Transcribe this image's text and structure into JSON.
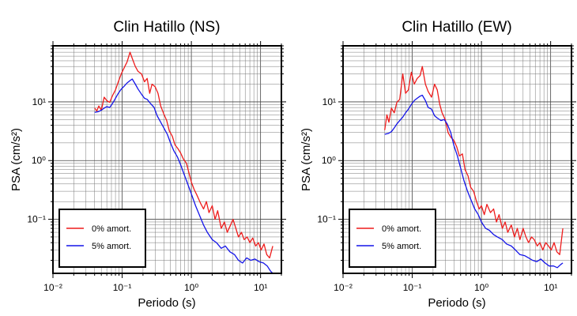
{
  "chart_data": [
    {
      "type": "line",
      "title": "Clin Hatillo (NS)",
      "xlabel": "Periodo (s)",
      "ylabel": "PSA (cm/s²)",
      "xscale": "log",
      "yscale": "log",
      "xlim": [
        0.01,
        20
      ],
      "ylim": [
        0.012,
        90
      ],
      "xticks": [
        0.01,
        0.1,
        1,
        10
      ],
      "xtick_labels": [
        "10⁻²",
        "10⁻¹",
        "10⁰",
        "10¹"
      ],
      "yticks": [
        0.1,
        1,
        10
      ],
      "ytick_labels": [
        "10⁻¹",
        "10⁰",
        "10¹"
      ],
      "grid": true,
      "legend_position": "bottom-left",
      "series": [
        {
          "name": "0% amort.",
          "color": "#ee1c1c",
          "x": [
            0.04,
            0.043,
            0.046,
            0.05,
            0.055,
            0.06,
            0.066,
            0.073,
            0.08,
            0.088,
            0.097,
            0.107,
            0.118,
            0.13,
            0.14,
            0.155,
            0.17,
            0.19,
            0.21,
            0.23,
            0.25,
            0.27,
            0.3,
            0.33,
            0.36,
            0.4,
            0.44,
            0.48,
            0.53,
            0.58,
            0.64,
            0.7,
            0.77,
            0.85,
            0.93,
            1.0,
            1.1,
            1.2,
            1.35,
            1.5,
            1.65,
            1.8,
            2.0,
            2.2,
            2.4,
            2.7,
            3.0,
            3.3,
            3.6,
            4.0,
            4.4,
            4.8,
            5.3,
            5.8,
            6.4,
            7.0,
            7.7,
            8.5,
            9.3,
            10.2,
            11.2,
            12.3,
            13.5,
            15.0
          ],
          "y": [
            7.8,
            7.0,
            8.5,
            7.2,
            12.0,
            10.5,
            9.8,
            13.0,
            16.0,
            22.0,
            30.0,
            38.0,
            48.0,
            70.0,
            55.0,
            40.0,
            33.0,
            30.0,
            22.0,
            25.0,
            14.0,
            20.0,
            18.0,
            14.0,
            8.5,
            6.2,
            4.8,
            3.2,
            2.6,
            1.85,
            1.6,
            1.35,
            1.05,
            0.9,
            0.6,
            0.43,
            0.32,
            0.26,
            0.19,
            0.15,
            0.2,
            0.13,
            0.17,
            0.1,
            0.14,
            0.07,
            0.09,
            0.06,
            0.075,
            0.1,
            0.07,
            0.05,
            0.06,
            0.045,
            0.05,
            0.04,
            0.048,
            0.035,
            0.04,
            0.03,
            0.038,
            0.025,
            0.022,
            0.035
          ]
        },
        {
          "name": "5% amort.",
          "color": "#1414e8",
          "x": [
            0.04,
            0.045,
            0.05,
            0.055,
            0.06,
            0.066,
            0.073,
            0.08,
            0.088,
            0.097,
            0.107,
            0.118,
            0.13,
            0.14,
            0.155,
            0.17,
            0.19,
            0.21,
            0.23,
            0.26,
            0.29,
            0.32,
            0.36,
            0.4,
            0.45,
            0.5,
            0.56,
            0.63,
            0.7,
            0.8,
            0.9,
            1.0,
            1.15,
            1.3,
            1.5,
            1.7,
            2.0,
            2.3,
            2.7,
            3.1,
            3.6,
            4.2,
            4.8,
            5.5,
            6.3,
            7.2,
            8.3,
            9.5,
            11.0,
            12.5,
            14.0,
            15.0
          ],
          "y": [
            6.6,
            6.8,
            7.2,
            7.8,
            8.3,
            8.0,
            9.5,
            11.5,
            14.0,
            16.5,
            18.5,
            21.0,
            23.0,
            24.5,
            20.0,
            16.5,
            13.5,
            11.5,
            11.0,
            9.2,
            8.0,
            5.8,
            4.5,
            3.6,
            2.8,
            2.0,
            1.45,
            1.15,
            0.85,
            0.55,
            0.38,
            0.27,
            0.17,
            0.12,
            0.08,
            0.06,
            0.045,
            0.04,
            0.032,
            0.035,
            0.028,
            0.025,
            0.02,
            0.018,
            0.022,
            0.02,
            0.021,
            0.019,
            0.018,
            0.016,
            0.013,
            0.012
          ]
        }
      ]
    },
    {
      "type": "line",
      "title": "Clin Hatillo (EW)",
      "xlabel": "Periodo (s)",
      "ylabel": "PSA (cm/s²)",
      "xscale": "log",
      "yscale": "log",
      "xlim": [
        0.01,
        20
      ],
      "ylim": [
        0.012,
        90
      ],
      "xticks": [
        0.01,
        0.1,
        1,
        10
      ],
      "xtick_labels": [
        "10⁻²",
        "10⁻¹",
        "10⁰",
        "10¹"
      ],
      "yticks": [
        0.1,
        1,
        10
      ],
      "ytick_labels": [
        "10⁻¹",
        "10⁰",
        "10¹"
      ],
      "grid": true,
      "legend_position": "bottom-left",
      "series": [
        {
          "name": "0% amort.",
          "color": "#ee1c1c",
          "x": [
            0.04,
            0.043,
            0.046,
            0.05,
            0.055,
            0.06,
            0.066,
            0.073,
            0.08,
            0.088,
            0.097,
            0.107,
            0.118,
            0.13,
            0.14,
            0.155,
            0.17,
            0.19,
            0.21,
            0.23,
            0.25,
            0.27,
            0.3,
            0.33,
            0.36,
            0.4,
            0.44,
            0.48,
            0.53,
            0.58,
            0.64,
            0.7,
            0.77,
            0.85,
            0.93,
            1.0,
            1.1,
            1.2,
            1.35,
            1.5,
            1.65,
            1.8,
            2.0,
            2.2,
            2.4,
            2.7,
            3.0,
            3.3,
            3.6,
            4.0,
            4.4,
            4.8,
            5.3,
            5.8,
            6.4,
            7.0,
            7.7,
            8.5,
            9.3,
            10.2,
            11.2,
            12.3,
            13.5,
            15.0
          ],
          "y": [
            3.3,
            6.0,
            4.5,
            7.8,
            6.5,
            9.8,
            11.0,
            30.0,
            14.0,
            16.0,
            32.0,
            20.0,
            25.0,
            28.0,
            40.0,
            20.0,
            15.0,
            12.0,
            20.0,
            16.0,
            9.0,
            6.5,
            5.0,
            3.0,
            2.5,
            2.2,
            1.7,
            1.2,
            1.3,
            0.7,
            0.55,
            0.35,
            0.3,
            0.2,
            0.15,
            0.17,
            0.12,
            0.18,
            0.13,
            0.15,
            0.09,
            0.12,
            0.07,
            0.09,
            0.06,
            0.08,
            0.05,
            0.07,
            0.045,
            0.07,
            0.05,
            0.04,
            0.05,
            0.045,
            0.035,
            0.04,
            0.03,
            0.04,
            0.035,
            0.03,
            0.04,
            0.028,
            0.025,
            0.07
          ]
        },
        {
          "name": "5% amort.",
          "color": "#1414e8",
          "x": [
            0.04,
            0.045,
            0.05,
            0.055,
            0.06,
            0.066,
            0.073,
            0.08,
            0.088,
            0.097,
            0.107,
            0.118,
            0.13,
            0.14,
            0.155,
            0.17,
            0.19,
            0.21,
            0.23,
            0.26,
            0.29,
            0.32,
            0.36,
            0.4,
            0.45,
            0.5,
            0.56,
            0.63,
            0.7,
            0.8,
            0.9,
            1.0,
            1.15,
            1.3,
            1.5,
            1.7,
            2.0,
            2.3,
            2.7,
            3.1,
            3.6,
            4.2,
            4.8,
            5.5,
            6.3,
            7.2,
            8.3,
            9.5,
            11.0,
            12.5,
            14.0,
            15.0
          ],
          "y": [
            2.8,
            2.9,
            3.1,
            3.6,
            4.2,
            4.8,
            5.5,
            6.5,
            7.5,
            9.0,
            10.5,
            11.5,
            12.5,
            13.0,
            10.5,
            8.0,
            7.5,
            5.8,
            5.3,
            4.8,
            5.0,
            4.2,
            3.0,
            1.8,
            1.2,
            0.75,
            0.45,
            0.3,
            0.22,
            0.15,
            0.12,
            0.09,
            0.07,
            0.065,
            0.055,
            0.05,
            0.045,
            0.038,
            0.035,
            0.03,
            0.025,
            0.024,
            0.022,
            0.02,
            0.019,
            0.021,
            0.018,
            0.016,
            0.016,
            0.015,
            0.017,
            0.018
          ]
        }
      ]
    }
  ]
}
